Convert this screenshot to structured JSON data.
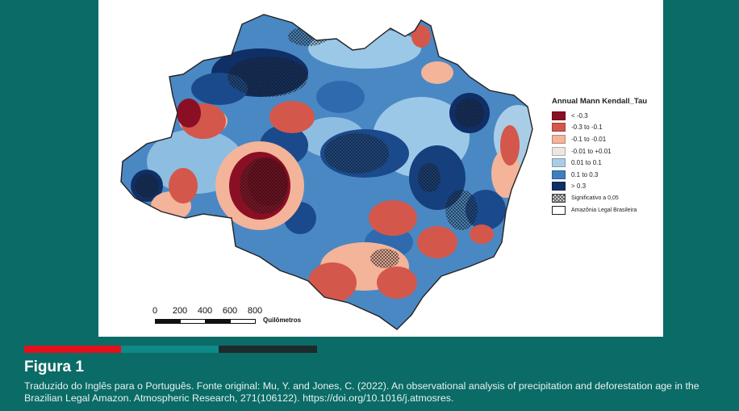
{
  "legend": {
    "title": "Annual Mann Kendall_Tau",
    "items": [
      {
        "label": "< -0.3",
        "color": "#8b0f24"
      },
      {
        "label": "-0.3 to -0.1",
        "color": "#d4574b"
      },
      {
        "label": "-0.1 to -0.01",
        "color": "#f3b49a"
      },
      {
        "label": "-0.01 to +0.01",
        "color": "#ebe7e5"
      },
      {
        "label": "0.01 to 0.1",
        "color": "#a9cde6"
      },
      {
        "label": "0.1 to 0.3",
        "color": "#3f7ebf"
      },
      {
        "label": "> 0.3",
        "color": "#0f2f66"
      }
    ],
    "significance_label": "Significativo a 0,05",
    "boundary_label": "Amazônia Legal Brasileira"
  },
  "scale": {
    "ticks": [
      "0",
      "200",
      "400",
      "600",
      "800"
    ],
    "unit": "Quilômetros"
  },
  "caption": {
    "title": "Figura 1",
    "text": "Traduzido do Inglês para o Português. Fonte original: Mu, Y. and Jones, C. (2022). An observational analysis of precipitation and deforestation age in the Brazilian Legal Amazon. Atmospheric Research, 271(106122). https://doi.org/10.1016/j.atmosres."
  },
  "colors": {
    "background": "#0b6b66",
    "stripe_red": "#e3101b",
    "stripe_teal": "#0f8a86",
    "stripe_dark": "#1d2a2c"
  }
}
